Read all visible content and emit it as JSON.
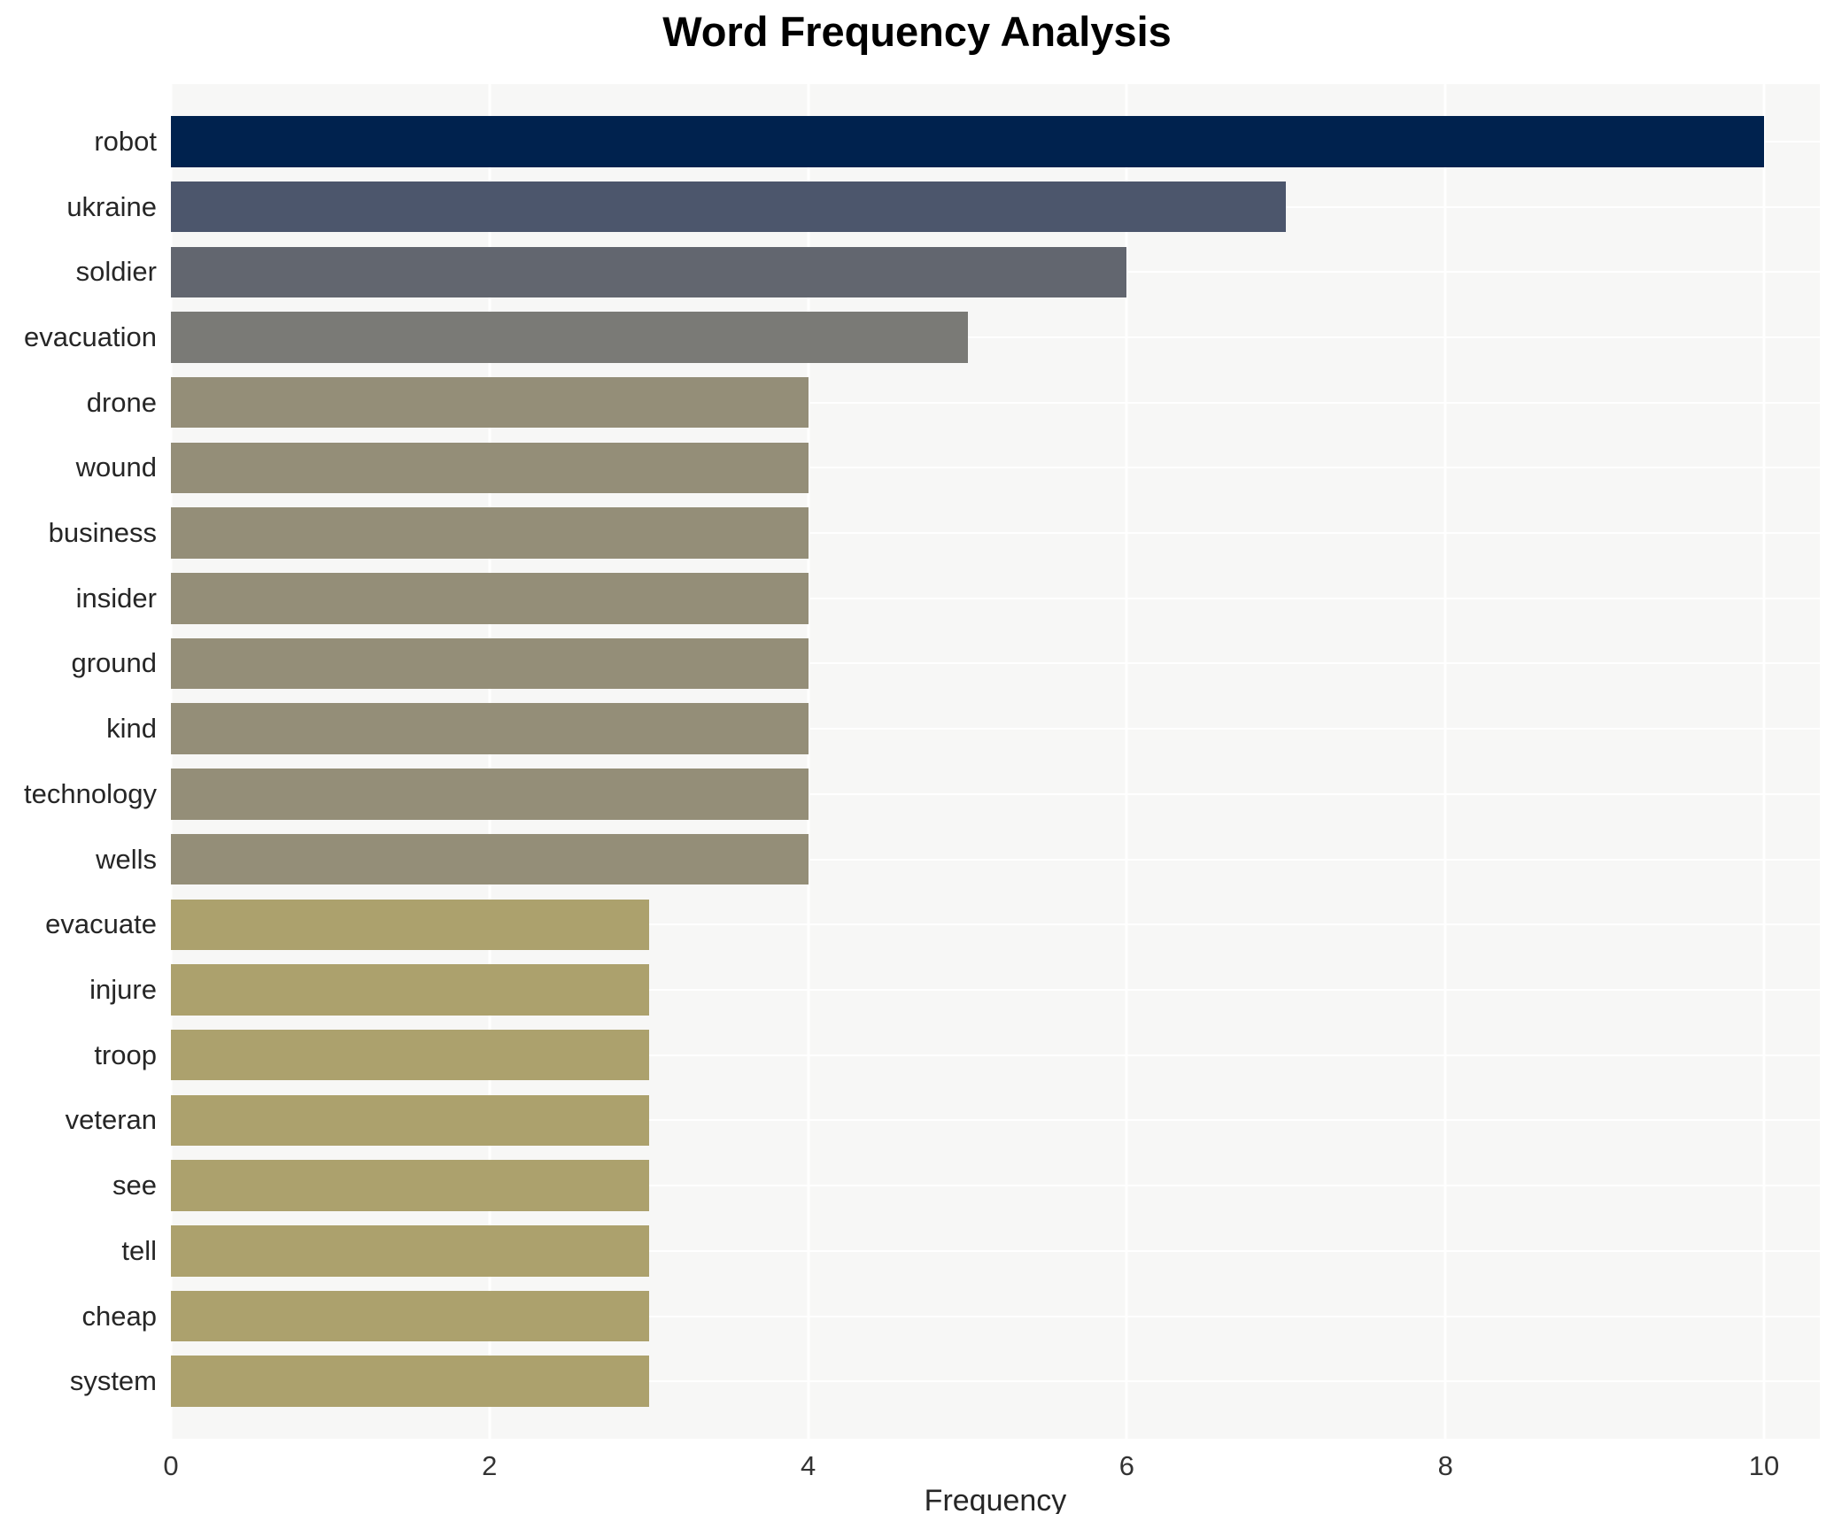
{
  "chart_data": {
    "type": "bar",
    "orientation": "horizontal",
    "title": "Word Frequency Analysis",
    "xlabel": "Frequency",
    "ylabel": "",
    "categories": [
      "robot",
      "ukraine",
      "soldier",
      "evacuation",
      "drone",
      "wound",
      "business",
      "insider",
      "ground",
      "kind",
      "technology",
      "wells",
      "evacuate",
      "injure",
      "troop",
      "veteran",
      "see",
      "tell",
      "cheap",
      "system"
    ],
    "values": [
      10,
      7,
      6,
      5,
      4,
      4,
      4,
      4,
      4,
      4,
      4,
      4,
      3,
      3,
      3,
      3,
      3,
      3,
      3,
      3
    ],
    "bar_colors": [
      "#00224e",
      "#4c566c",
      "#62666f",
      "#7a7a76",
      "#948e78",
      "#948e78",
      "#948e78",
      "#948e78",
      "#948e78",
      "#948e78",
      "#948e78",
      "#948e78",
      "#aca16d",
      "#aca16d",
      "#aca16d",
      "#aca16d",
      "#aca16d",
      "#aca16d",
      "#aca16d",
      "#aca16d"
    ],
    "xlim": [
      0,
      10.35
    ],
    "xticks": [
      0,
      2,
      4,
      6,
      8,
      10
    ],
    "grid": true,
    "legend": "none",
    "plot_bg_color": "#f7f7f6",
    "grid_color": "#ffffff"
  }
}
